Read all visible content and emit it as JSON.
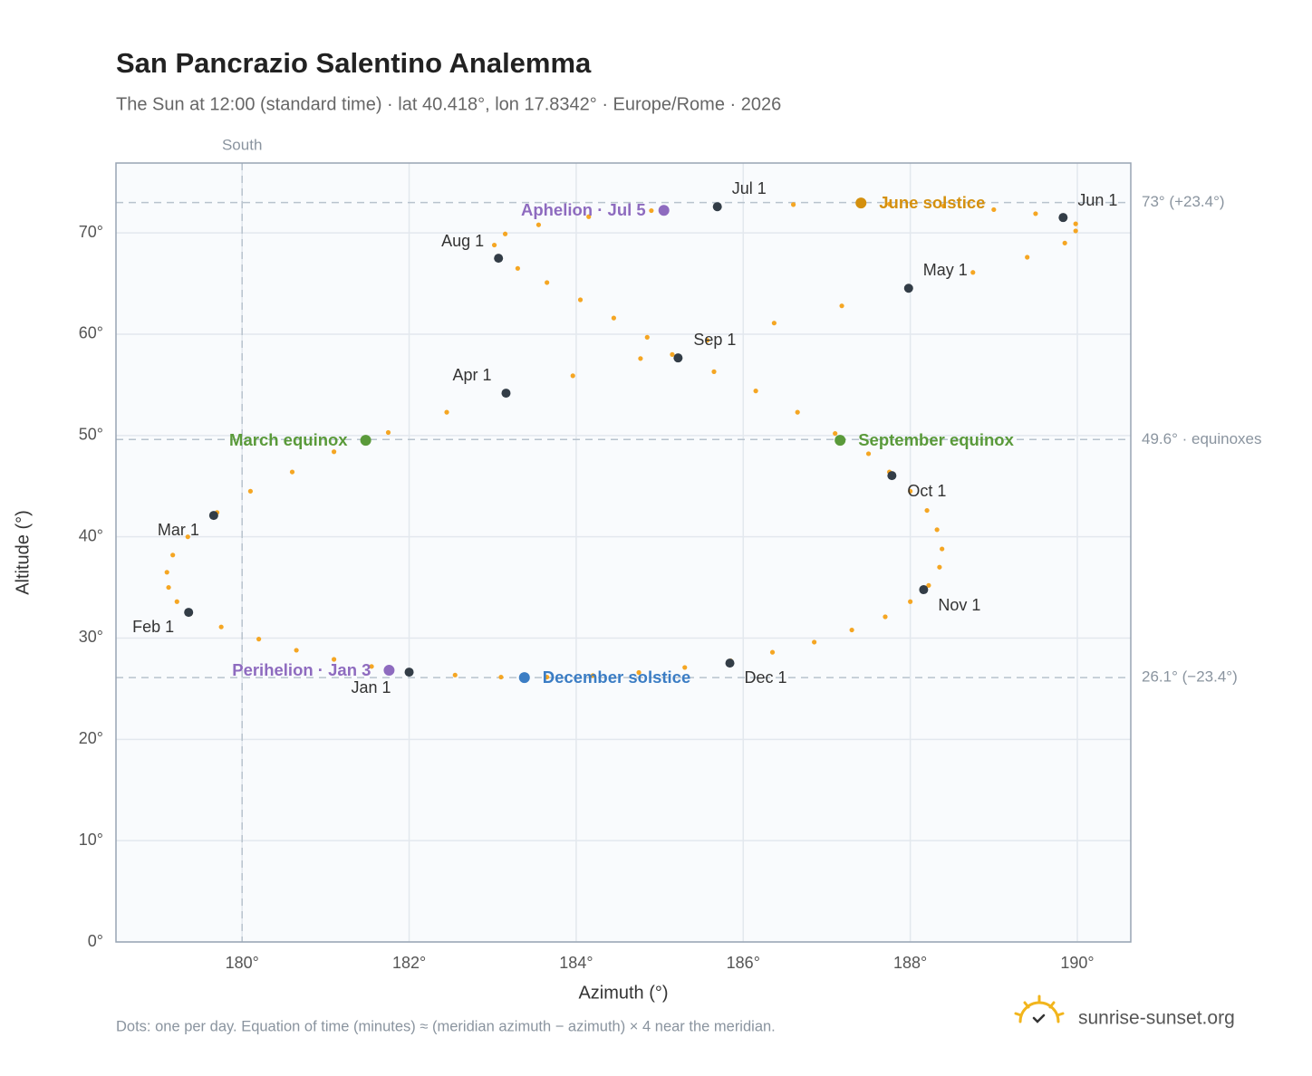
{
  "chart_data": {
    "type": "scatter",
    "title": "San Pancrazio Salentino Analemma",
    "subtitle": "The Sun at 12:00 (standard time) · lat 40.418°, lon 17.8342° · Europe/Rome · 2026",
    "x_label": "Azimuth (°)",
    "y_label": "Altitude (°)",
    "footnote": "Dots: one per day. Equation of time (minutes) ≈ (meridian azimuth − azimuth) × 4 near the meridian.",
    "brand": "sunrise-sunset.org",
    "xlim": [
      178.49,
      190.64
    ],
    "ylim": [
      0,
      76.9
    ],
    "xticks": [
      {
        "value": 180,
        "label": "180°"
      },
      {
        "value": 182,
        "label": "182°"
      },
      {
        "value": 184,
        "label": "184°"
      },
      {
        "value": 186,
        "label": "186°"
      },
      {
        "value": 188,
        "label": "188°"
      },
      {
        "value": 190,
        "label": "190°"
      }
    ],
    "yticks": [
      {
        "value": 0,
        "label": "0°"
      },
      {
        "value": 10,
        "label": "10°"
      },
      {
        "value": 20,
        "label": "20°"
      },
      {
        "value": 30,
        "label": "30°"
      },
      {
        "value": 40,
        "label": "40°"
      },
      {
        "value": 50,
        "label": "50°"
      },
      {
        "value": 60,
        "label": "60°"
      },
      {
        "value": 70,
        "label": "70°"
      }
    ],
    "grid": true,
    "hlines": [
      {
        "value": 73,
        "label": "73° (+23.4°)"
      },
      {
        "value": 49.6,
        "label": "49.6° · equinoxes"
      },
      {
        "value": 26.1,
        "label": "26.1° (−23.4°)"
      }
    ],
    "vlines": [
      {
        "value": 180,
        "label": "South"
      }
    ],
    "points": {
      "color": "#f5a623",
      "x": [
        182.0,
        181.55,
        181.1,
        180.65,
        180.2,
        179.75,
        179.38,
        179.22,
        179.12,
        179.1,
        179.17,
        179.35,
        179.7,
        180.1,
        180.6,
        181.1,
        181.75,
        182.45,
        183.16,
        183.96,
        184.77,
        185.57,
        186.37,
        187.18,
        187.98,
        188.75,
        189.4,
        189.85,
        189.98,
        189.98,
        189.85,
        189.5,
        189.0,
        188.4,
        187.75,
        186.6,
        185.69,
        184.9,
        184.15,
        183.55,
        183.15,
        183.02,
        183.07,
        183.3,
        183.65,
        184.05,
        184.45,
        184.85,
        185.15,
        185.65,
        186.15,
        186.65,
        187.1,
        187.5,
        187.75,
        188.0,
        188.2,
        188.32,
        188.38,
        188.35,
        188.22,
        188.0,
        187.7,
        187.3,
        186.85,
        186.35,
        185.85,
        185.3,
        184.75,
        184.2,
        183.65,
        183.1,
        182.55
      ],
      "y": [
        26.64,
        27.2,
        27.9,
        28.8,
        29.9,
        31.1,
        32.4,
        33.6,
        35.0,
        36.5,
        38.2,
        40.0,
        42.4,
        44.5,
        46.4,
        48.4,
        50.3,
        52.3,
        54.18,
        55.9,
        57.6,
        59.4,
        61.1,
        62.8,
        64.54,
        66.1,
        67.6,
        69.0,
        70.2,
        70.9,
        71.45,
        71.9,
        72.3,
        72.65,
        72.85,
        72.8,
        72.59,
        72.2,
        71.6,
        70.8,
        69.9,
        68.8,
        67.6,
        66.5,
        65.1,
        63.4,
        61.6,
        59.7,
        58.0,
        56.3,
        54.4,
        52.3,
        50.2,
        48.2,
        46.4,
        44.5,
        42.6,
        40.7,
        38.8,
        37.0,
        35.2,
        33.6,
        32.1,
        30.8,
        29.6,
        28.6,
        27.75,
        27.1,
        26.6,
        26.3,
        26.15,
        26.15,
        26.35
      ]
    },
    "months": {
      "color": "#333d47",
      "labels": [
        "Jan 1",
        "Feb 1",
        "Mar 1",
        "Apr 1",
        "May 1",
        "Jun 1",
        "Jul 1",
        "Aug 1",
        "Sep 1",
        "Oct 1",
        "Nov 1",
        "Dec 1"
      ],
      "x": [
        182.0,
        179.36,
        179.66,
        183.16,
        187.98,
        189.83,
        185.69,
        183.07,
        185.22,
        187.78,
        188.16,
        185.84
      ],
      "y": [
        26.64,
        32.54,
        42.11,
        54.18,
        64.54,
        71.52,
        72.59,
        67.5,
        57.66,
        46.04,
        34.78,
        27.53
      ]
    },
    "events": [
      {
        "label": "March equinox",
        "x": 181.48,
        "y": 49.53,
        "color": "#5a9a3a"
      },
      {
        "label": "June solstice",
        "x": 187.41,
        "y": 72.95,
        "color": "#d4900e"
      },
      {
        "label": "September equinox",
        "x": 187.16,
        "y": 49.53,
        "color": "#5a9a3a"
      },
      {
        "label": "December solstice",
        "x": 183.38,
        "y": 26.1,
        "color": "#3b7dc4"
      },
      {
        "label": "Perihelion · Jan 3",
        "x": 181.76,
        "y": 26.82,
        "color": "#8e6bbf"
      },
      {
        "label": "Aphelion · Jul 5",
        "x": 185.05,
        "y": 72.23,
        "color": "#8e6bbf"
      }
    ]
  }
}
